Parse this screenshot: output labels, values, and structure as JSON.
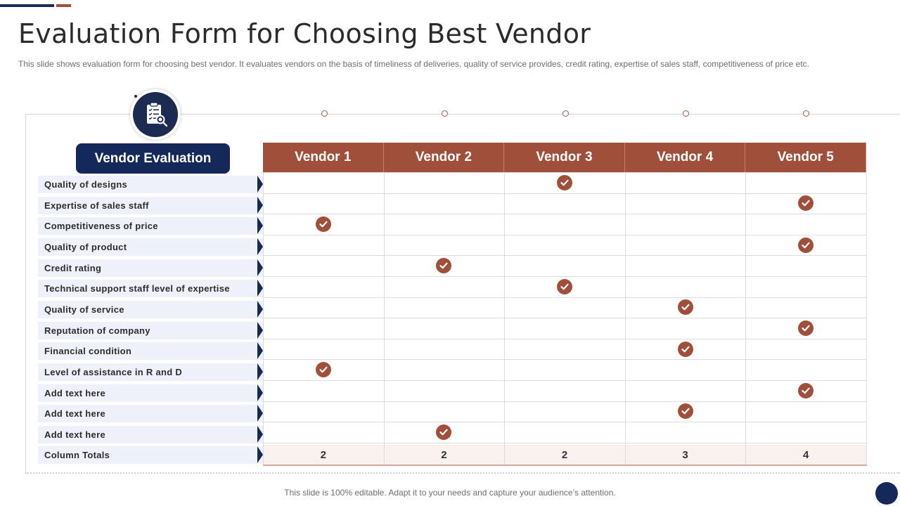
{
  "title": "Evaluation Form for Choosing Best Vendor",
  "subtitle": "This slide shows evaluation form for choosing best vendor. It evaluates vendors on the basis of timeliness of deliveries, quality of service provides, credit rating, expertise of sales staff, competitiveness of price etc.",
  "header_icon": "clipboard-search-icon",
  "check_icon": "checkmark-icon",
  "vendor_evaluation_label": "Vendor Evaluation",
  "vendors": [
    "Vendor 1",
    "Vendor 2",
    "Vendor 3",
    "Vendor 4",
    "Vendor 5"
  ],
  "criteria": [
    {
      "label": "Quality of designs",
      "vendor": 3
    },
    {
      "label": "Expertise of sales staff",
      "vendor": 5
    },
    {
      "label": "Competitiveness of price",
      "vendor": 1
    },
    {
      "label": "Quality of product",
      "vendor": 5
    },
    {
      "label": "Credit rating",
      "vendor": 2
    },
    {
      "label": "Technical support staff level of expertise",
      "vendor": 3
    },
    {
      "label": "Quality of service",
      "vendor": 4
    },
    {
      "label": "Reputation of company",
      "vendor": 5
    },
    {
      "label": "Financial condition",
      "vendor": 4
    },
    {
      "label": "Level of assistance in R and D",
      "vendor": 1
    },
    {
      "label": "Add text here",
      "vendor": 5
    },
    {
      "label": "Add text here",
      "vendor": 4
    },
    {
      "label": "Add text here",
      "vendor": 2
    }
  ],
  "totals_label": "Column Totals",
  "totals": [
    "2",
    "2",
    "2",
    "3",
    "4"
  ],
  "footer": "This slide is 100% editable. Adapt it to your needs and capture your audience’s attention.",
  "colors": {
    "navy": "#14295a",
    "brown": "#a04f3b",
    "row_bg": "#eef1f9"
  }
}
